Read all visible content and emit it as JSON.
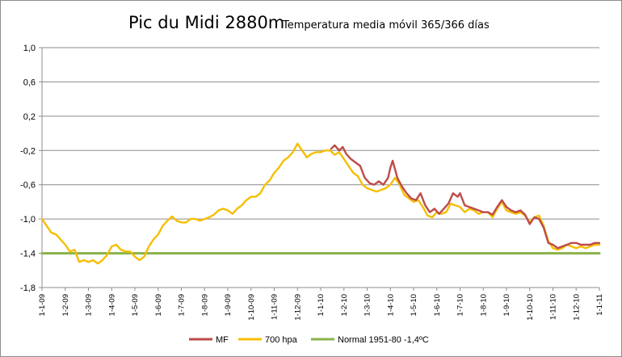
{
  "chart_data": {
    "type": "line",
    "title": "Pic du Midi 2880m",
    "subtitle": "Temperatura media móvil 365/366 días",
    "xlabel": "",
    "ylabel": "",
    "ylim": [
      -1.8,
      1.0
    ],
    "y_ticks": [
      "1,0",
      "0,6",
      "0,2",
      "-0,2",
      "-0,6",
      "-1,0",
      "-1,4",
      "-1,8"
    ],
    "y_tick_values": [
      1.0,
      0.6,
      0.2,
      -0.2,
      -0.6,
      -1.0,
      -1.4,
      -1.8
    ],
    "x_tick_labels": [
      "1-1-09",
      "1-2-09",
      "1-3-09",
      "1-4-09",
      "1-5-09",
      "1-6-09",
      "1-7-09",
      "1-8-09",
      "1-9-09",
      "1-10-09",
      "1-11-09",
      "1-12-09",
      "1-1-10",
      "1-2-10",
      "1-3-10",
      "1-4-10",
      "1-5-10",
      "1-6-10",
      "1-7-10",
      "1-8-10",
      "1-9-10",
      "1-10-10",
      "1-11-10",
      "1-12-10",
      "1-1-11"
    ],
    "grid": "horizontal",
    "legend": "bottom",
    "series": [
      {
        "name": "MF",
        "color": "#be4b48",
        "x_months": [
          12.45,
          12.6,
          12.8,
          12.95,
          13.1,
          13.3,
          13.5,
          13.7,
          13.9,
          14.1,
          14.3,
          14.5,
          14.7,
          14.9,
          15.0,
          15.1,
          15.3,
          15.5,
          15.7,
          15.9,
          16.1,
          16.3,
          16.5,
          16.7,
          16.9,
          17.1,
          17.3,
          17.5,
          17.7,
          17.9,
          18.0,
          18.2,
          18.4,
          18.6,
          18.8,
          19.0,
          19.2,
          19.4,
          19.6,
          19.8,
          20.0,
          20.2,
          20.4,
          20.6,
          20.8,
          21.0,
          21.2,
          21.4,
          21.6,
          21.8,
          22.0,
          22.2,
          22.4,
          22.6,
          22.8,
          23.0,
          23.2,
          23.4,
          23.6,
          23.8,
          24.0
        ],
        "values": [
          -0.18,
          -0.14,
          -0.2,
          -0.16,
          -0.24,
          -0.3,
          -0.34,
          -0.38,
          -0.52,
          -0.58,
          -0.6,
          -0.56,
          -0.6,
          -0.52,
          -0.4,
          -0.32,
          -0.52,
          -0.62,
          -0.7,
          -0.76,
          -0.78,
          -0.7,
          -0.84,
          -0.92,
          -0.88,
          -0.94,
          -0.88,
          -0.82,
          -0.7,
          -0.74,
          -0.7,
          -0.84,
          -0.86,
          -0.88,
          -0.9,
          -0.92,
          -0.92,
          -0.95,
          -0.86,
          -0.78,
          -0.86,
          -0.9,
          -0.92,
          -0.9,
          -0.95,
          -1.06,
          -0.98,
          -1.0,
          -1.1,
          -1.28,
          -1.3,
          -1.34,
          -1.32,
          -1.3,
          -1.28,
          -1.28,
          -1.3,
          -1.3,
          -1.3,
          -1.28,
          -1.28
        ]
      },
      {
        "name": "700 hpa",
        "color": "#f5be00",
        "x_months": [
          0.0,
          0.2,
          0.4,
          0.6,
          0.8,
          1.0,
          1.2,
          1.4,
          1.6,
          1.8,
          2.0,
          2.2,
          2.4,
          2.6,
          2.8,
          3.0,
          3.2,
          3.4,
          3.6,
          3.8,
          4.0,
          4.2,
          4.4,
          4.6,
          4.8,
          5.0,
          5.2,
          5.4,
          5.6,
          5.8,
          6.0,
          6.2,
          6.4,
          6.6,
          6.8,
          7.0,
          7.2,
          7.4,
          7.6,
          7.8,
          8.0,
          8.2,
          8.4,
          8.6,
          8.8,
          9.0,
          9.2,
          9.4,
          9.6,
          9.8,
          10.0,
          10.2,
          10.4,
          10.6,
          10.8,
          11.0,
          11.2,
          11.4,
          11.6,
          11.8,
          12.0,
          12.2,
          12.4,
          12.6,
          12.8,
          13.0,
          13.2,
          13.4,
          13.6,
          13.8,
          14.0,
          14.2,
          14.4,
          14.6,
          14.8,
          15.0,
          15.2,
          15.4,
          15.6,
          15.8,
          16.0,
          16.2,
          16.4,
          16.6,
          16.8,
          17.0,
          17.2,
          17.4,
          17.6,
          17.8,
          18.0,
          18.2,
          18.4,
          18.6,
          18.8,
          19.0,
          19.2,
          19.4,
          19.6,
          19.8,
          20.0,
          20.2,
          20.4,
          20.6,
          20.8,
          21.0,
          21.2,
          21.4,
          21.6,
          21.8,
          22.0,
          22.2,
          22.4,
          22.6,
          22.8,
          23.0,
          23.2,
          23.4,
          23.6,
          23.8,
          24.0
        ],
        "values": [
          -1.0,
          -1.08,
          -1.16,
          -1.18,
          -1.24,
          -1.3,
          -1.38,
          -1.36,
          -1.5,
          -1.48,
          -1.5,
          -1.48,
          -1.52,
          -1.48,
          -1.42,
          -1.32,
          -1.3,
          -1.36,
          -1.38,
          -1.38,
          -1.44,
          -1.48,
          -1.44,
          -1.32,
          -1.24,
          -1.18,
          -1.08,
          -1.02,
          -0.97,
          -1.02,
          -1.04,
          -1.04,
          -1.0,
          -1.0,
          -1.02,
          -1.0,
          -0.98,
          -0.95,
          -0.9,
          -0.88,
          -0.9,
          -0.94,
          -0.88,
          -0.84,
          -0.78,
          -0.74,
          -0.74,
          -0.7,
          -0.6,
          -0.55,
          -0.46,
          -0.4,
          -0.32,
          -0.28,
          -0.22,
          -0.12,
          -0.2,
          -0.28,
          -0.24,
          -0.22,
          -0.22,
          -0.2,
          -0.2,
          -0.25,
          -0.22,
          -0.3,
          -0.38,
          -0.46,
          -0.5,
          -0.6,
          -0.64,
          -0.66,
          -0.68,
          -0.66,
          -0.64,
          -0.6,
          -0.52,
          -0.6,
          -0.72,
          -0.76,
          -0.8,
          -0.78,
          -0.86,
          -0.96,
          -0.98,
          -0.92,
          -0.94,
          -0.92,
          -0.82,
          -0.84,
          -0.86,
          -0.92,
          -0.88,
          -0.9,
          -0.94,
          -0.92,
          -0.92,
          -0.98,
          -0.88,
          -0.8,
          -0.9,
          -0.92,
          -0.94,
          -0.92,
          -0.96,
          -1.04,
          -0.98,
          -0.96,
          -1.08,
          -1.26,
          -1.34,
          -1.36,
          -1.34,
          -1.3,
          -1.32,
          -1.34,
          -1.32,
          -1.34,
          -1.32,
          -1.3,
          -1.3
        ]
      },
      {
        "name": "Normal 1951-80 -1,4ºC",
        "color": "#8ab34a",
        "x_months": [
          0,
          24
        ],
        "values": [
          -1.4,
          -1.4
        ]
      }
    ]
  }
}
